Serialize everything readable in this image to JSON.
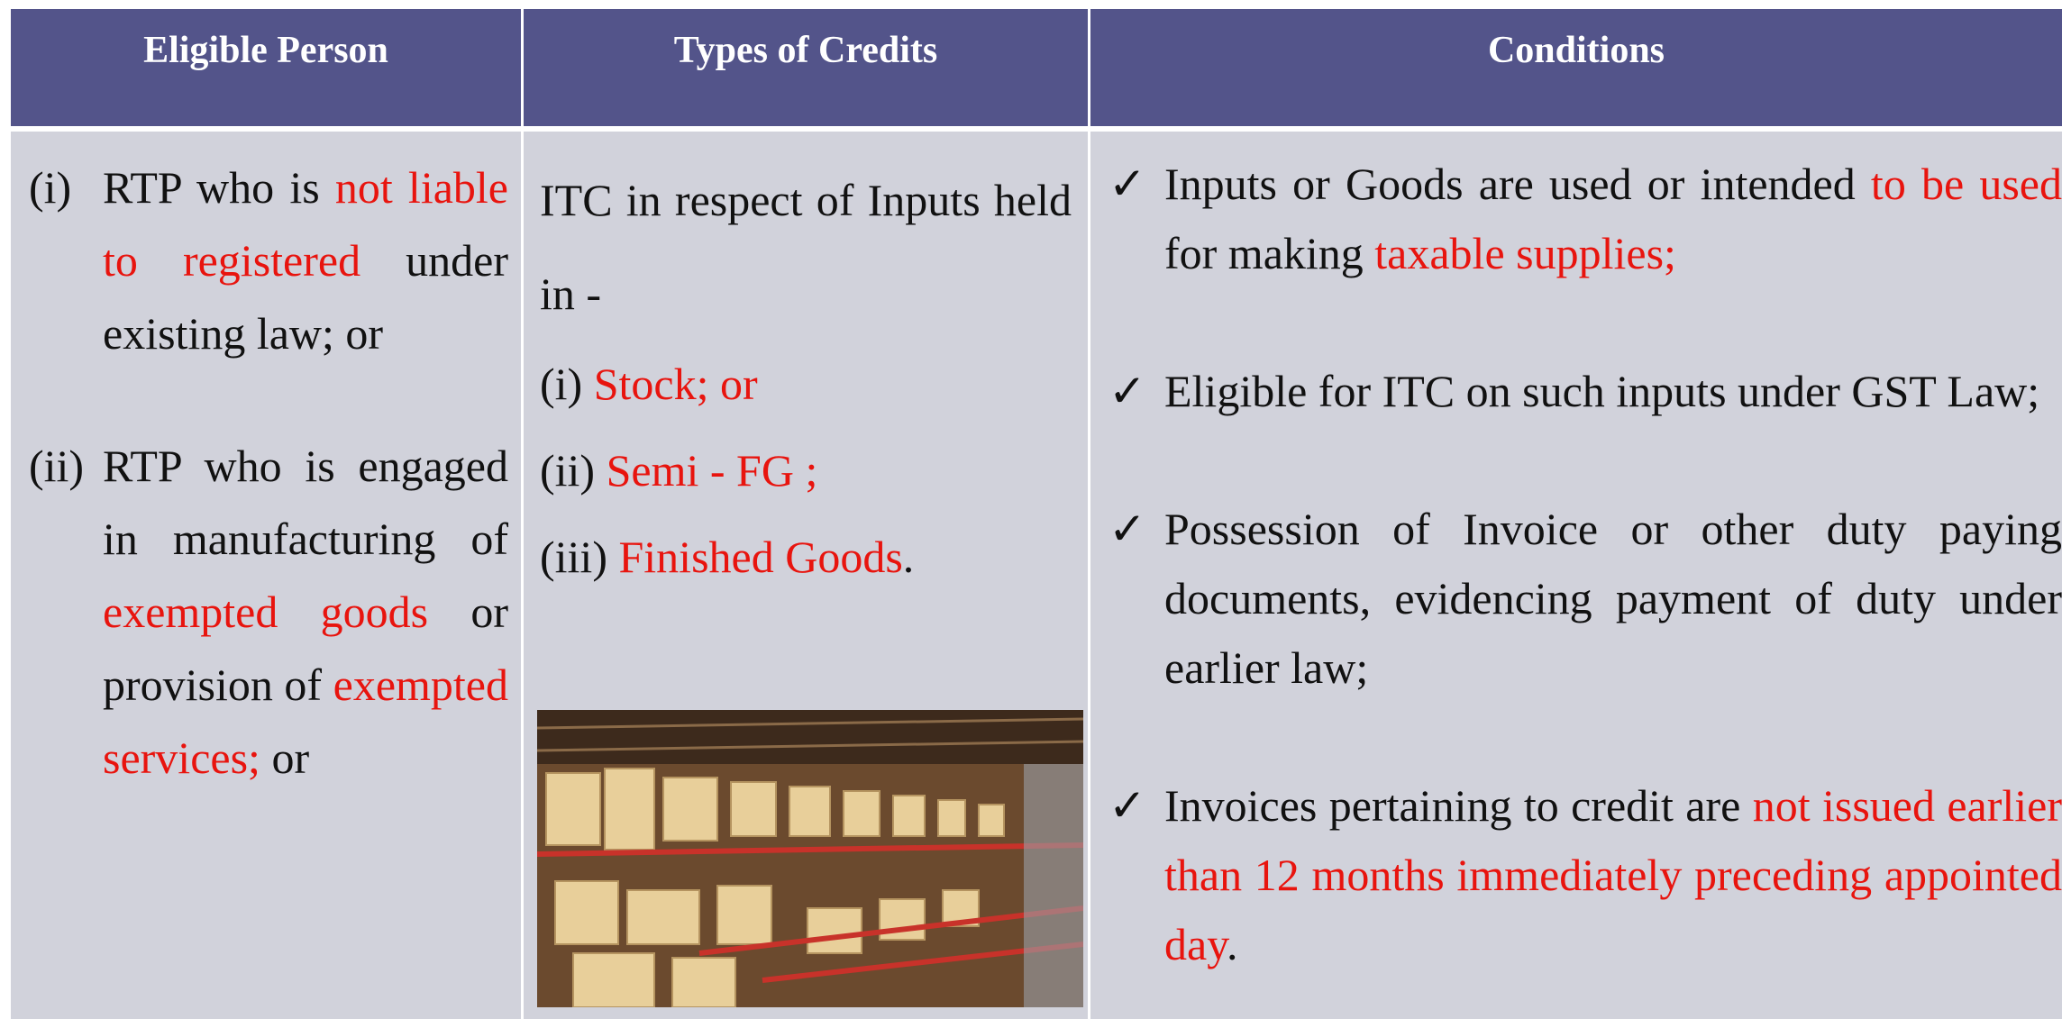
{
  "table": {
    "headers": [
      "Eligible Person",
      "Types of Credits",
      "Conditions"
    ],
    "eligible_person": [
      {
        "marker": "(i)",
        "runs": [
          {
            "text": "RTP who is "
          },
          {
            "text": "not liable to registered",
            "color": "#e8140e"
          },
          {
            "text": " under existing law; or"
          }
        ]
      },
      {
        "marker": "(ii)",
        "runs": [
          {
            "text": "RTP who is engaged in manufacturing of "
          },
          {
            "text": "exempted goods",
            "color": "#e8140e"
          },
          {
            "text": " or provision of "
          },
          {
            "text": "exempted services;",
            "color": "#e8140e"
          },
          {
            "text": " or"
          }
        ]
      }
    ],
    "types_of_credits": {
      "intro": "ITC in respect of Inputs held in -",
      "items": [
        {
          "marker": "(i) ",
          "text": "Stock; or",
          "color": "#e8140e"
        },
        {
          "marker": "(ii) ",
          "text": "Semi - FG ;",
          "color": "#e8140e"
        },
        {
          "marker": "(iii) ",
          "text": "Finished Goods",
          "color": "#e8140e",
          "suffix": "."
        }
      ]
    },
    "conditions": [
      {
        "runs": [
          {
            "text": "Inputs or Goods are used or intended "
          },
          {
            "text": "to be used",
            "color": "#e8140e"
          },
          {
            "text": " for making "
          },
          {
            "text": "taxable supplies;",
            "color": "#e8140e"
          }
        ]
      },
      {
        "runs": [
          {
            "text": "Eligible for ITC on such inputs under GST Law;"
          }
        ]
      },
      {
        "runs": [
          {
            "text": "Possession of Invoice or other duty paying documents, evidencing payment of duty under earlier law;"
          }
        ]
      },
      {
        "runs": [
          {
            "text": "Invoices pertaining to credit are "
          },
          {
            "text": "not issued earlier than 12 months immediately preceding appointed day",
            "color": "#e8140e"
          },
          {
            "text": "."
          }
        ]
      }
    ]
  }
}
